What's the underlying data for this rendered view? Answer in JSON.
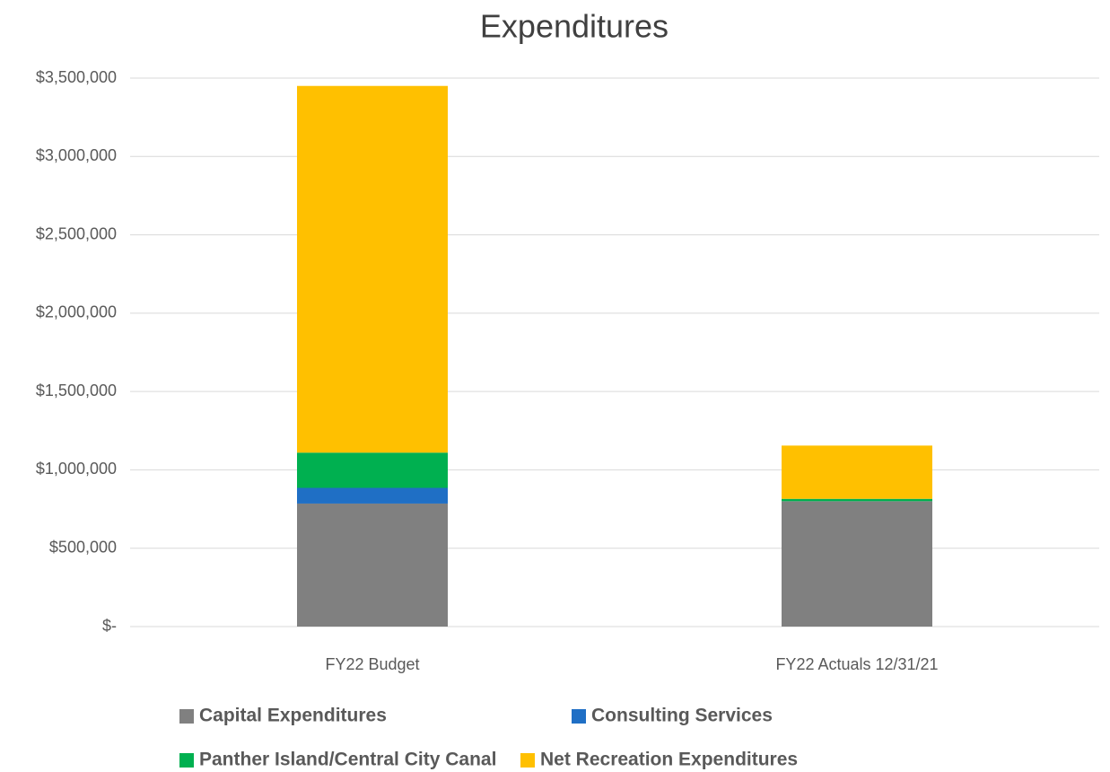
{
  "chart_data": {
    "type": "stacked_bar",
    "title": "Expenditures",
    "categories": [
      "FY22 Budget",
      "FY22 Actuals 12/31/21"
    ],
    "series": [
      {
        "name": "Capital Expenditures",
        "color": "#808080",
        "values": [
          785000,
          800000
        ]
      },
      {
        "name": "Consulting Services",
        "color": "#1f6fc5",
        "values": [
          100000,
          0
        ]
      },
      {
        "name": "Panther Island/Central City Canal",
        "color": "#00b050",
        "values": [
          225000,
          15000
        ]
      },
      {
        "name": "Net Recreation Expenditures",
        "color": "#ffc000",
        "values": [
          2340000,
          340000
        ]
      }
    ],
    "ylim": [
      0,
      3500000
    ],
    "yticks": [
      {
        "value": 0,
        "label": "$-"
      },
      {
        "value": 500000,
        "label": "$500,000"
      },
      {
        "value": 1000000,
        "label": "$1,000,000"
      },
      {
        "value": 1500000,
        "label": "$1,500,000"
      },
      {
        "value": 2000000,
        "label": "$2,000,000"
      },
      {
        "value": 2500000,
        "label": "$2,500,000"
      },
      {
        "value": 3000000,
        "label": "$3,000,000"
      },
      {
        "value": 3500000,
        "label": "$3,500,000"
      }
    ],
    "grid": true,
    "legend": "bottom"
  }
}
